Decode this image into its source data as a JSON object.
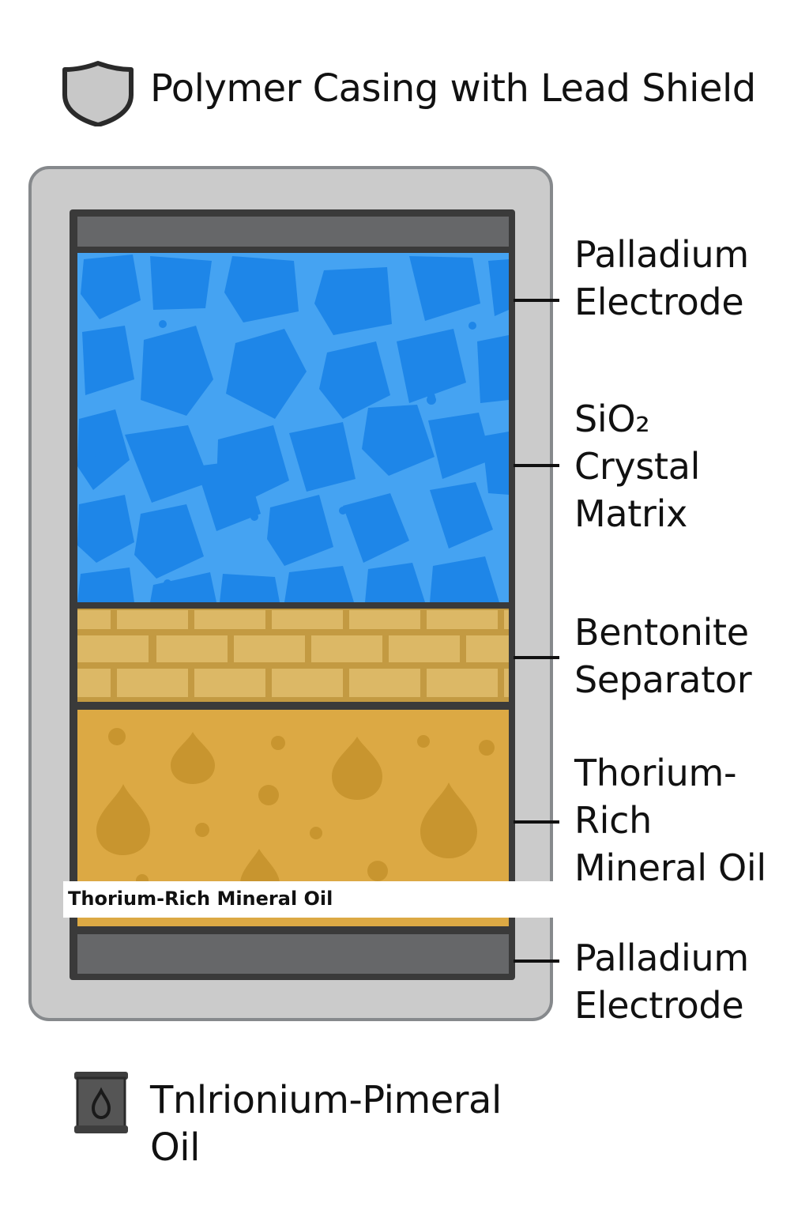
{
  "header": {
    "title": "Polymer Casing with Lead Shield",
    "icon": "shield-icon"
  },
  "layers": [
    {
      "id": "electrode-top",
      "name": "Palladium Electrode",
      "color": "#666769"
    },
    {
      "id": "crystal",
      "name": "SiO2 Crystal Matrix",
      "color": "#1e88ea"
    },
    {
      "id": "bentonite",
      "name": "Bentonite Separator",
      "color": "#dcb866"
    },
    {
      "id": "oil",
      "name": "Thorium-Rich Mineral Oil",
      "color": "#dca944"
    },
    {
      "id": "electrode-bottom",
      "name": "Palladium Electrode",
      "color": "#666769"
    }
  ],
  "labels": {
    "electrode_top": [
      "Palladium",
      "Electrode"
    ],
    "crystal": [
      "SiO₂",
      "Crystal",
      "Matrix"
    ],
    "bentonite": [
      "Bentonite",
      "Separator"
    ],
    "oil": [
      "Thorium-",
      "Rich",
      "Mineral Oil"
    ],
    "electrode_bottom": [
      "Palladium",
      "Electrode"
    ]
  },
  "overlay_label": "Thorium-Rich Mineral Oil",
  "footer": {
    "lines": [
      "Tnlrionium-Pimeral",
      "Oil"
    ],
    "icon": "oil-barrel-icon"
  },
  "colors": {
    "casing": "#cbcbcb",
    "casing_border": "#86898c",
    "crystal_grain": "#1b7fe0",
    "crystal_boundary": "#45a3f2",
    "brick": "#dcb866",
    "oil_drop": "#c8952f"
  }
}
